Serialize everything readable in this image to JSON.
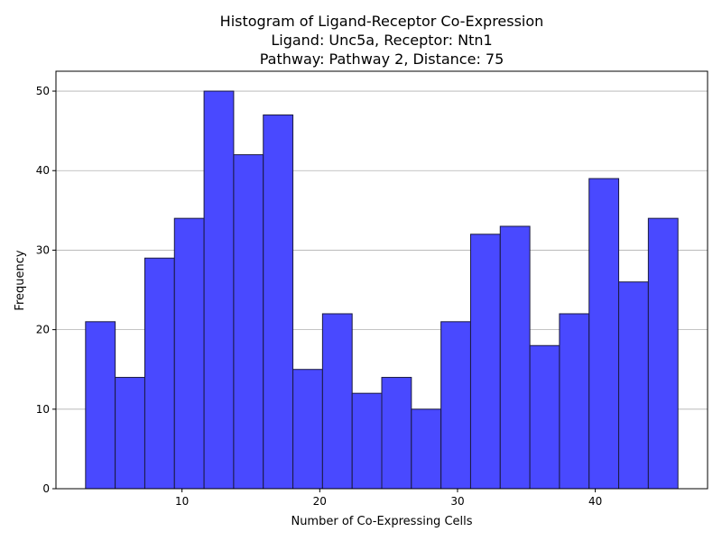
{
  "chart_data": {
    "type": "bar",
    "title_lines": [
      "Histogram of Ligand-Receptor Co-Expression",
      "Ligand: Unc5a, Receptor: Ntn1",
      "Pathway: Pathway 2, Distance: 75"
    ],
    "xlabel": "Number of Co-Expressing Cells",
    "ylabel": "Frequency",
    "bin_edges": [
      3.0,
      5.15,
      7.3,
      9.45,
      11.6,
      13.75,
      15.9,
      18.05,
      20.2,
      22.35,
      24.5,
      26.65,
      28.8,
      30.95,
      33.1,
      35.25,
      37.4,
      39.55,
      41.7,
      43.85,
      46.0
    ],
    "values": [
      21,
      14,
      29,
      34,
      50,
      42,
      47,
      15,
      22,
      12,
      14,
      10,
      21,
      32,
      33,
      18,
      22,
      39,
      26,
      34
    ],
    "xlim": [
      0.85,
      48.15
    ],
    "ylim": [
      0,
      52.5
    ],
    "xticks": [
      10,
      20,
      30,
      40
    ],
    "yticks": [
      0,
      10,
      20,
      30,
      40,
      50
    ],
    "grid": "y",
    "bar_color": "#4949ff",
    "edge_color": "#1a1a40"
  }
}
